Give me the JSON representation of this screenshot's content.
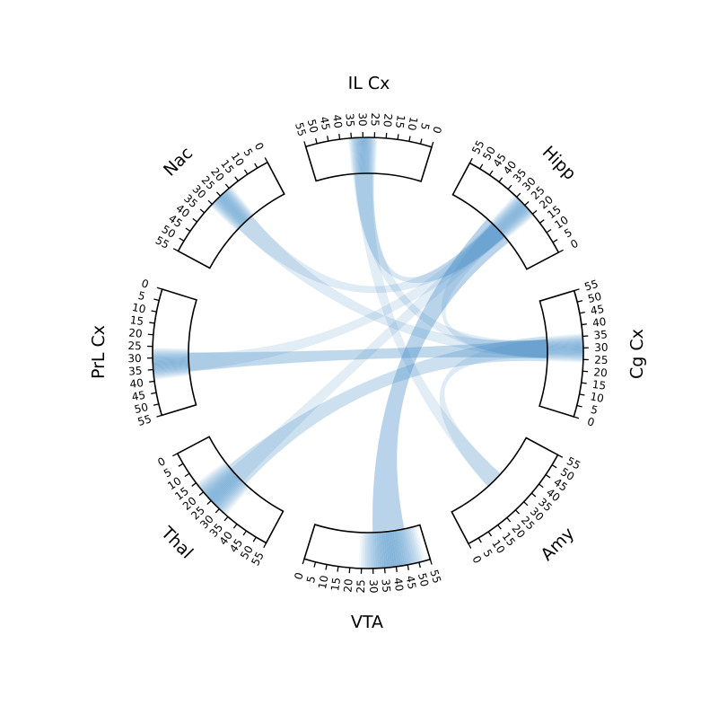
{
  "diagram": {
    "type": "chord",
    "axis": {
      "min": 0,
      "max": 55,
      "tick_step": 5
    },
    "colors": {
      "band": "#3a87c3",
      "outline": "#000000"
    },
    "segments": [
      {
        "name": "Hipp",
        "label": "Hipp",
        "highlight": [
          20,
          30
        ]
      },
      {
        "name": "Cg Cx",
        "label": "Cg Cx",
        "highlight": [
          25,
          35
        ]
      },
      {
        "name": "Amy",
        "label": "Amy",
        "highlight": null
      },
      {
        "name": "VTA",
        "label": "VTA",
        "highlight": [
          27,
          50
        ]
      },
      {
        "name": "Thal",
        "label": "Thal",
        "highlight": [
          17,
          32
        ]
      },
      {
        "name": "PrL Cx",
        "label": "PrL Cx",
        "highlight": [
          27,
          38
        ]
      },
      {
        "name": "Nac",
        "label": "Nac",
        "highlight": [
          20,
          30
        ]
      },
      {
        "name": "IL Cx",
        "label": "IL Cx",
        "highlight": [
          25,
          35
        ]
      }
    ],
    "links": [
      {
        "from": "Hipp",
        "to": "VTA",
        "weight": 0.8
      },
      {
        "from": "Hipp",
        "to": "IL Cx",
        "weight": 0.3
      },
      {
        "from": "Hipp",
        "to": "Thal",
        "weight": 0.15
      },
      {
        "from": "Hipp",
        "to": "Cg Cx",
        "weight": 0.15
      },
      {
        "from": "Cg Cx",
        "to": "Thal",
        "weight": 0.5
      },
      {
        "from": "Cg Cx",
        "to": "Amy",
        "weight": 0.2
      },
      {
        "from": "Cg Cx",
        "to": "IL Cx",
        "weight": 0.2
      },
      {
        "from": "Cg Cx",
        "to": "PrL Cx",
        "weight": 0.2
      },
      {
        "from": "Nac",
        "to": "Hipp",
        "weight": 0.2
      },
      {
        "from": "Nac",
        "to": "Cg Cx",
        "weight": 0.2
      },
      {
        "from": "PrL Cx",
        "to": "Cg Cx",
        "weight": 0.25
      },
      {
        "from": "PrL Cx",
        "to": "Hipp",
        "weight": 0.15
      },
      {
        "from": "IL Cx",
        "to": "Amy",
        "weight": 0.15
      }
    ]
  }
}
